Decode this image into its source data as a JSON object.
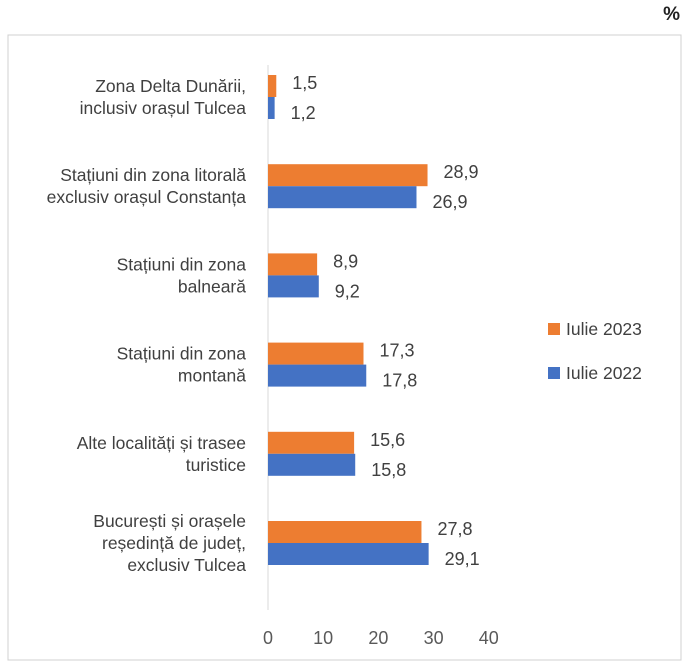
{
  "chart_data": {
    "type": "bar",
    "orientation": "horizontal",
    "unit": "%",
    "categories": [
      [
        "Zona Delta Dunării,",
        "inclusiv orașul Tulcea"
      ],
      [
        "Stațiuni din zona litorală",
        "exclusiv orașul Constanța"
      ],
      [
        "Stațiuni din zona",
        "balneară"
      ],
      [
        "Stațiuni din zona",
        "montană"
      ],
      [
        "Alte localități și trasee",
        "turistice"
      ],
      [
        "București și orașele",
        "reședință de județ,",
        "exclusiv Tulcea"
      ]
    ],
    "series": [
      {
        "name": "Iulie 2023",
        "color": "#ED7D31",
        "values": [
          1.5,
          28.9,
          8.9,
          17.3,
          15.6,
          27.8
        ],
        "labels": [
          "1,5",
          "28,9",
          "8,9",
          "17,3",
          "15,6",
          "27,8"
        ]
      },
      {
        "name": "Iulie 2022",
        "color": "#4472C4",
        "values": [
          1.2,
          26.9,
          9.2,
          17.8,
          15.8,
          29.1
        ],
        "labels": [
          "1,2",
          "26,9",
          "9,2",
          "17,8",
          "15,8",
          "29,1"
        ]
      }
    ],
    "xlim": [
      0,
      40
    ],
    "xticks": [
      "0",
      "10",
      "20",
      "30",
      "40"
    ],
    "grid": false,
    "legend_position": "right",
    "border": true
  }
}
